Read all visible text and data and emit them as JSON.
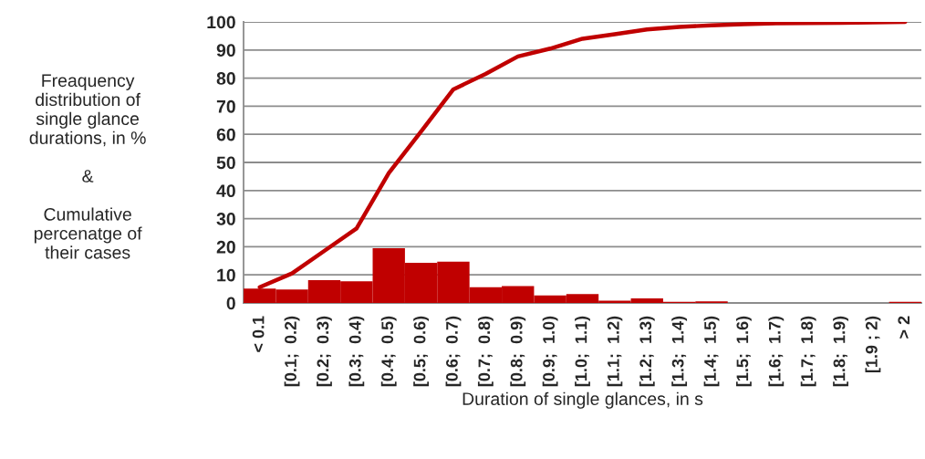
{
  "chart_data": {
    "type": "bar",
    "ylabel": "Freaquency\ndistribution of\nsingle glance\ndurations, in %\n\n&\n\nCumulative\npercenatge of\ntheir cases",
    "xlabel": "Duration of single glances, in s",
    "categories": [
      "< 0.1",
      "[0.1;  0.2)",
      "[0.2;  0.3)",
      "[0.3;  0.4)",
      "[0.4;  0.5)",
      "[0.5;  0.6)",
      "[0.6;  0.7)",
      "[0.7;  0.8)",
      "[0.8;  0.9)",
      "[0.9;  1.0)",
      "[1.0;  1.1)",
      "[1.1;  1.2)",
      "[1.2;  1.3)",
      "[1.3;  1.4)",
      "[1.4;  1.5)",
      "[1.5;  1.6)",
      "[1.6;  1.7)",
      "[1.7;  1.8)",
      "[1.8;  1.9)",
      "[1.9 ; 2)",
      "> 2"
    ],
    "series": [
      {
        "color": "#c00000",
        "values": [
          5.1,
          4.8,
          8.1,
          7.7,
          19.5,
          14.3,
          14.7,
          5.6,
          6.0,
          2.7,
          3.2,
          0.8,
          1.6,
          0.4,
          0.6,
          0,
          0,
          0,
          0,
          0,
          0.4
        ]
      },
      {
        "type": "line",
        "color": "#c00000",
        "values": [
          5.6,
          10.5,
          18.5,
          26.5,
          46.2,
          61,
          76.0,
          81.5,
          87.7,
          90.5,
          94.0,
          95.6,
          97.3,
          98.2,
          98.8,
          99.2,
          99.5,
          99.6,
          99.7,
          99.8,
          100
        ]
      }
    ],
    "ylim": [
      0,
      100
    ],
    "yticks": [
      0,
      10,
      20,
      30,
      40,
      50,
      60,
      70,
      80,
      90,
      100
    ],
    "grid": "y",
    "legend": false,
    "marker": "none",
    "line_style": "solid"
  }
}
